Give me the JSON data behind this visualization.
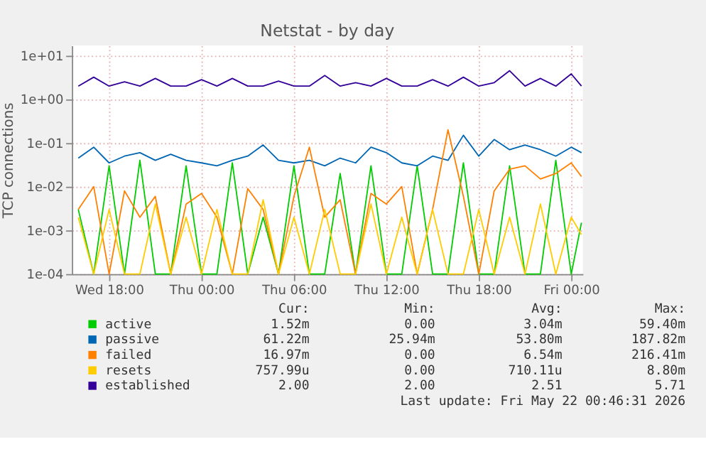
{
  "chart_data": {
    "type": "line",
    "title": "Netstat - by day",
    "ylabel": "TCP connections",
    "x": [
      "2026-05-20T16:00",
      "2026-05-20T17:00",
      "2026-05-20T18:00",
      "2026-05-20T19:00",
      "2026-05-20T20:00",
      "2026-05-20T21:00",
      "2026-05-20T22:00",
      "2026-05-20T23:00",
      "2026-05-21T00:00",
      "2026-05-21T01:00",
      "2026-05-21T02:00",
      "2026-05-21T03:00",
      "2026-05-21T04:00",
      "2026-05-21T05:00",
      "2026-05-21T06:00",
      "2026-05-21T07:00",
      "2026-05-21T08:00",
      "2026-05-21T09:00",
      "2026-05-21T10:00",
      "2026-05-21T11:00",
      "2026-05-21T12:00",
      "2026-05-21T13:00",
      "2026-05-21T14:00",
      "2026-05-21T15:00",
      "2026-05-21T16:00",
      "2026-05-21T17:00",
      "2026-05-21T18:00",
      "2026-05-21T19:00",
      "2026-05-21T20:00",
      "2026-05-21T21:00",
      "2026-05-21T22:00",
      "2026-05-21T23:00",
      "2026-05-22T00:00",
      "2026-05-22T00:40"
    ],
    "series": [
      {
        "name": "active",
        "color": "#00cc00",
        "values": [
          0.003,
          0.0001,
          0.03,
          0.0001,
          0.04,
          0.0001,
          0.0001,
          0.03,
          0.0001,
          0.0001,
          0.035,
          0.0001,
          0.002,
          0.0001,
          0.03,
          0.0001,
          0.0001,
          0.02,
          0.0001,
          0.03,
          0.0001,
          0.0001,
          0.03,
          0.0001,
          0.0001,
          0.035,
          0.0001,
          0.0001,
          0.03,
          0.0001,
          0.0001,
          0.04,
          0.0001,
          0.0015
        ]
      },
      {
        "name": "passive",
        "color": "#0066b3",
        "values": [
          0.045,
          0.08,
          0.035,
          0.05,
          0.06,
          0.04,
          0.055,
          0.04,
          0.035,
          0.03,
          0.04,
          0.05,
          0.09,
          0.04,
          0.035,
          0.04,
          0.03,
          0.045,
          0.035,
          0.08,
          0.06,
          0.035,
          0.03,
          0.05,
          0.04,
          0.15,
          0.05,
          0.12,
          0.07,
          0.09,
          0.07,
          0.05,
          0.08,
          0.06
        ]
      },
      {
        "name": "failed",
        "color": "#ff8000",
        "values": [
          0.003,
          0.01,
          0.0001,
          0.008,
          0.002,
          0.006,
          0.0001,
          0.004,
          0.007,
          0.002,
          0.0001,
          0.009,
          0.003,
          0.0001,
          0.006,
          0.08,
          0.002,
          0.005,
          0.0001,
          0.007,
          0.004,
          0.01,
          0.0001,
          0.003,
          0.2,
          0.006,
          0.0001,
          0.008,
          0.025,
          0.03,
          0.015,
          0.02,
          0.035,
          0.017
        ]
      },
      {
        "name": "resets",
        "color": "#ffcc00",
        "values": [
          0.002,
          0.0001,
          0.003,
          0.0001,
          0.0001,
          0.004,
          0.0001,
          0.002,
          0.0001,
          0.003,
          0.0001,
          0.0001,
          0.005,
          0.0001,
          0.002,
          0.0001,
          0.003,
          0.0001,
          0.0001,
          0.004,
          0.0001,
          0.002,
          0.0001,
          0.003,
          0.0001,
          0.0001,
          0.003,
          0.0001,
          0.002,
          0.0001,
          0.004,
          0.0001,
          0.002,
          0.0008
        ]
      },
      {
        "name": "established",
        "color": "#330099",
        "values": [
          2,
          3.2,
          2,
          2.5,
          2,
          3,
          2,
          2,
          2.8,
          2,
          3,
          2,
          2,
          2.6,
          2,
          2,
          3.5,
          2,
          2.4,
          2,
          3,
          2,
          2,
          2.8,
          2,
          3.2,
          2,
          2.4,
          4.5,
          2,
          3,
          2,
          3.8,
          2
        ]
      }
    ],
    "log": true,
    "grid": true,
    "legend": "bottom",
    "xlim": [
      "2026-05-20T15:35",
      "2026-05-22T00:45"
    ],
    "xticks": [
      {
        "value": "2026-05-20T18:00",
        "label": "Wed 18:00"
      },
      {
        "value": "2026-05-21T00:00",
        "label": "Thu 00:00"
      },
      {
        "value": "2026-05-21T06:00",
        "label": "Thu 06:00"
      },
      {
        "value": "2026-05-21T12:00",
        "label": "Thu 12:00"
      },
      {
        "value": "2026-05-21T18:00",
        "label": "Thu 18:00"
      },
      {
        "value": "2026-05-22T00:00",
        "label": "Fri 00:00"
      }
    ],
    "ylim": [
      0.0001,
      17
    ],
    "yticks": [
      {
        "value": 0.0001,
        "label": "1e-04"
      },
      {
        "value": 0.001,
        "label": "1e-03"
      },
      {
        "value": 0.01,
        "label": "1e-02"
      },
      {
        "value": 0.1,
        "label": "1e-01"
      },
      {
        "value": 1,
        "label": "1e+00"
      },
      {
        "value": 10,
        "label": "1e+01"
      }
    ],
    "annotations": [
      "Cur:",
      "Min:",
      "Avg:",
      "Max:",
      "1.52m",
      "0.00",
      "3.04m",
      "59.40m",
      "61.22m",
      "25.94m",
      "53.80m",
      "187.82m",
      "16.97m",
      "0.00",
      "6.54m",
      "216.41m",
      "757.99u",
      "0.00",
      "710.11u",
      "8.80m",
      "2.00",
      "2.00",
      "2.51",
      "5.71",
      "Last update: Fri May 22 00:46:31 2026"
    ]
  }
}
